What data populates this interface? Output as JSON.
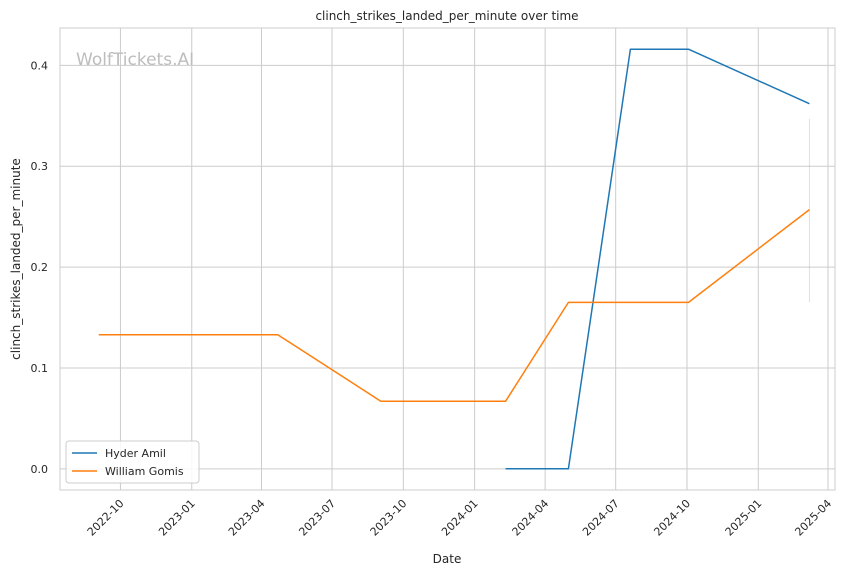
{
  "chart_data": {
    "type": "line",
    "title": "clinch_strikes_landed_per_minute over time",
    "xlabel": "Date",
    "ylabel": "clinch_strikes_landed_per_minute",
    "watermark": "WolfTickets.AI",
    "grid": true,
    "legend_position": "lower-left",
    "xlim": [
      "2022-07-15",
      "2025-04-10"
    ],
    "ylim": [
      -0.021,
      0.437
    ],
    "x_ticks": [
      "2022-10",
      "2023-01",
      "2023-04",
      "2023-07",
      "2023-10",
      "2024-01",
      "2024-04",
      "2024-07",
      "2024-10",
      "2025-01",
      "2025-04"
    ],
    "y_ticks": [
      0.0,
      0.1,
      0.2,
      0.3,
      0.4
    ],
    "y_tick_labels": [
      "0.0",
      "0.1",
      "0.2",
      "0.3",
      "0.4"
    ],
    "series": [
      {
        "name": "Hyder Amil",
        "color": "#1f77b4",
        "points": [
          {
            "x": "2024-02-10",
            "y": 0.0
          },
          {
            "x": "2024-05-01",
            "y": 0.0
          },
          {
            "x": "2024-07-20",
            "y": 0.416
          },
          {
            "x": "2024-10-03",
            "y": 0.416
          },
          {
            "x": "2025-03-08",
            "y": 0.362
          }
        ]
      },
      {
        "name": "William Gomis",
        "color": "#ff7f0e",
        "points": [
          {
            "x": "2022-09-03",
            "y": 0.133
          },
          {
            "x": "2023-04-22",
            "y": 0.133
          },
          {
            "x": "2023-09-02",
            "y": 0.067
          },
          {
            "x": "2024-02-10",
            "y": 0.067
          },
          {
            "x": "2024-05-01",
            "y": 0.165
          },
          {
            "x": "2024-10-03",
            "y": 0.165
          },
          {
            "x": "2025-03-08",
            "y": 0.257
          }
        ]
      }
    ],
    "error_band": {
      "x": "2025-03-08",
      "y_low": 0.165,
      "y_high": 0.347,
      "color": "#ff7f0e"
    }
  }
}
